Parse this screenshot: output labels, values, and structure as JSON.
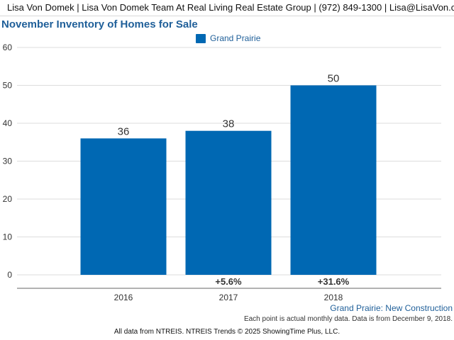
{
  "header": {
    "text": "Lisa Von Domek | Lisa Von Domek Team At Real Living Real Estate Group | (972) 849-1300 | Lisa@LisaVon.com"
  },
  "chart_data": {
    "type": "bar",
    "title": "November Inventory of Homes for Sale",
    "categories": [
      "2016",
      "2017",
      "2018"
    ],
    "series": [
      {
        "name": "Grand Prairie",
        "values": [
          36,
          38,
          50
        ]
      }
    ],
    "data_labels": [
      "36",
      "38",
      "50"
    ],
    "change_labels": [
      "",
      "+5.6%",
      "+31.6%"
    ],
    "yticks": [
      "0",
      "10",
      "20",
      "30",
      "40",
      "50",
      "60"
    ],
    "ylim": [
      0,
      60
    ],
    "xlabel": "",
    "ylabel": "",
    "grid": true,
    "legend_position": "top-center",
    "bar_color": "#0068b3"
  },
  "caption": "Grand Prairie: New Construction",
  "footnote": "Each point is actual monthly data. Data is from December 9, 2018.",
  "footer": "All data from NTREIS. NTREIS Trends © 2025 ShowingTime Plus, LLC."
}
